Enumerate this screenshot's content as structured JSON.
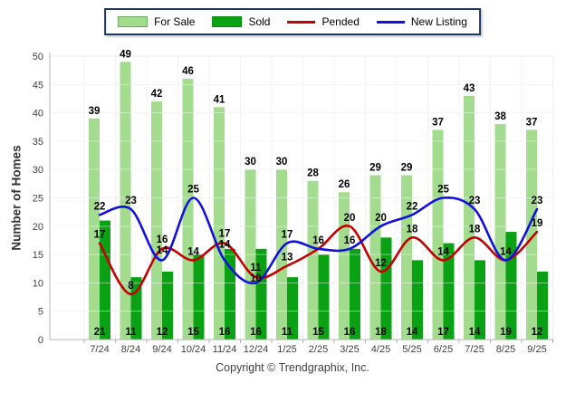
{
  "page": {
    "copyright": "Copyright © Trendgraphix, Inc."
  },
  "colors": {
    "for_sale": "#A3DC8E",
    "sold": "#0BA115",
    "pended": "#C40000",
    "new_listing": "#1111DF",
    "legend_border": "#1B3A64",
    "axis_text": "#3F3F3F",
    "value_label": "#000000",
    "gridline": "#EBEBEB",
    "vertical_gridline": "#F1F1F1",
    "axis_line": "#B3B3B3",
    "plot_background": "#FFFFFF"
  },
  "chart_data": {
    "type": "bar",
    "subtype": "grouped bars with smoothed overlay lines",
    "title": "",
    "xlabel": "",
    "ylabel": "Number of Homes",
    "ylim": [
      0,
      50
    ],
    "ytick_step": 5,
    "grid": true,
    "legend_position": "top",
    "categories": [
      "7/24",
      "8/24",
      "9/24",
      "10/24",
      "11/24",
      "12/24",
      "1/25",
      "2/25",
      "3/25",
      "4/25",
      "5/25",
      "6/25",
      "7/25",
      "8/25",
      "9/25"
    ],
    "series": [
      {
        "name": "For Sale",
        "type": "bar",
        "color": "#A3DC8E",
        "values": [
          39,
          49,
          42,
          46,
          41,
          30,
          30,
          28,
          26,
          29,
          29,
          37,
          43,
          38,
          37
        ]
      },
      {
        "name": "Sold",
        "type": "bar",
        "color": "#0BA115",
        "values": [
          21,
          11,
          12,
          15,
          16,
          16,
          11,
          15,
          16,
          18,
          14,
          17,
          14,
          19,
          12
        ]
      },
      {
        "name": "Pended",
        "type": "line",
        "color": "#C40000",
        "values": [
          17,
          8,
          16,
          14,
          17,
          11,
          13,
          16,
          20,
          12,
          18,
          14,
          18,
          14,
          19
        ]
      },
      {
        "name": "New Listing",
        "type": "line",
        "color": "#1111DF",
        "values": [
          22,
          23,
          14,
          25,
          14,
          10,
          17,
          16,
          16,
          20,
          22,
          25,
          23,
          14,
          23
        ]
      }
    ],
    "legend": {
      "items": [
        {
          "label": "For Sale",
          "swatch": "bar"
        },
        {
          "label": "Sold",
          "swatch": "bar"
        },
        {
          "label": "Pended",
          "swatch": "line"
        },
        {
          "label": "New Listing",
          "swatch": "line"
        }
      ]
    }
  }
}
